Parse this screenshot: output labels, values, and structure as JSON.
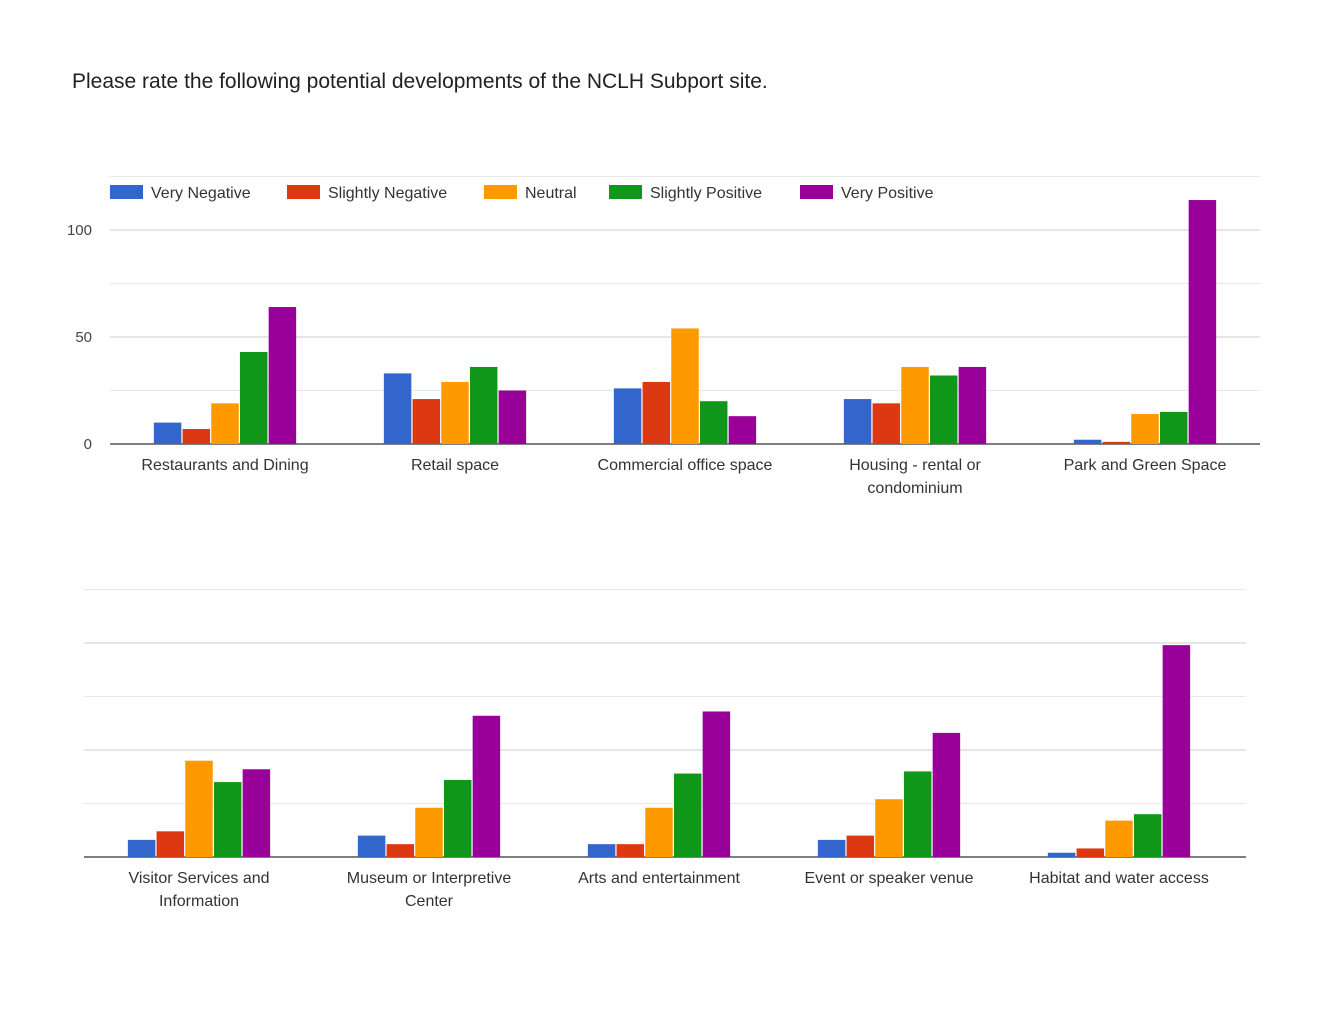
{
  "title": "Please rate the following potential developments of the NCLH Subport site.",
  "chart_data": [
    {
      "type": "bar",
      "categories": [
        [
          "Restaurants and Dining"
        ],
        [
          "Retail space"
        ],
        [
          "Commercial office space"
        ],
        [
          "Housing - rental or",
          "condominium"
        ],
        [
          "Park and Green Space"
        ]
      ],
      "series": [
        {
          "name": "Very Negative",
          "color": "#3366cc",
          "values": [
            10,
            33,
            26,
            21,
            2
          ]
        },
        {
          "name": "Slightly Negative",
          "color": "#dc3912",
          "values": [
            7,
            21,
            29,
            19,
            1
          ]
        },
        {
          "name": "Neutral",
          "color": "#ff9900",
          "values": [
            19,
            29,
            54,
            36,
            14
          ]
        },
        {
          "name": "Slightly Positive",
          "color": "#109618",
          "values": [
            43,
            36,
            20,
            32,
            15
          ]
        },
        {
          "name": "Very Positive",
          "color": "#990099",
          "values": [
            64,
            25,
            13,
            36,
            114
          ]
        }
      ],
      "yticks": [
        0,
        50,
        100
      ],
      "ylim": [
        0,
        125
      ],
      "grid": true,
      "legend": "top-left"
    },
    {
      "type": "bar",
      "categories": [
        [
          "Visitor Services and",
          "Information"
        ],
        [
          "Museum or Interpretive",
          "Center"
        ],
        [
          "Arts and entertainment"
        ],
        [
          "Event or speaker venue"
        ],
        [
          "Habitat and water access"
        ]
      ],
      "series": [
        {
          "name": "Very Negative",
          "color": "#3366cc",
          "values": [
            8,
            10,
            6,
            8,
            2
          ]
        },
        {
          "name": "Slightly Negative",
          "color": "#dc3912",
          "values": [
            12,
            6,
            6,
            10,
            4
          ]
        },
        {
          "name": "Neutral",
          "color": "#ff9900",
          "values": [
            45,
            23,
            23,
            27,
            17
          ]
        },
        {
          "name": "Slightly Positive",
          "color": "#109618",
          "values": [
            35,
            36,
            39,
            40,
            20
          ]
        },
        {
          "name": "Very Positive",
          "color": "#990099",
          "values": [
            41,
            66,
            68,
            58,
            99
          ]
        }
      ],
      "yticks": [],
      "ylim": [
        0,
        125
      ],
      "grid": true,
      "legend": "none"
    }
  ]
}
